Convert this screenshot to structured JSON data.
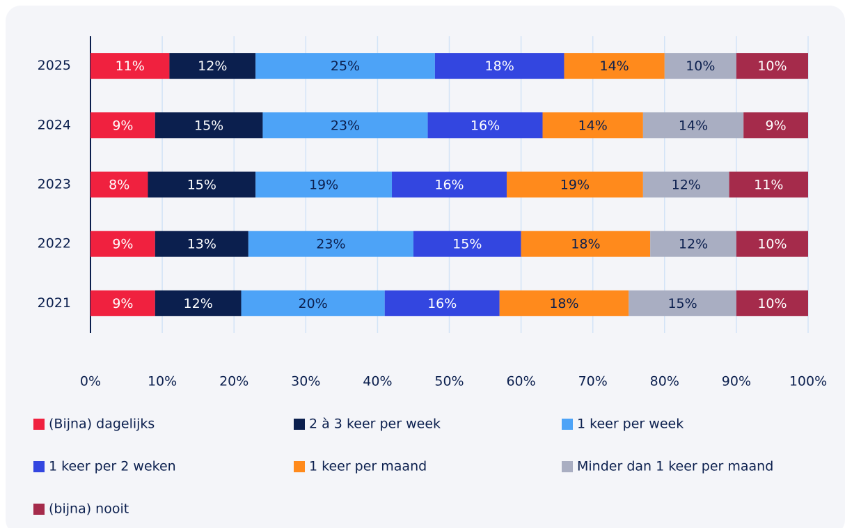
{
  "chart_data": {
    "type": "stacked_barh",
    "categories": [
      "2025",
      "2024",
      "2023",
      "2022",
      "2021"
    ],
    "series": [
      {
        "name": "(Bijna) dagelijks",
        "color": "#f0213f",
        "values": [
          11,
          9,
          8,
          9,
          9
        ],
        "value_labels": [
          "11%",
          "9%",
          "8%",
          "9%",
          "9%"
        ]
      },
      {
        "name": "2 à 3 keer per week",
        "color": "#0b1f4e",
        "values": [
          12,
          15,
          15,
          13,
          12
        ],
        "value_labels": [
          "12%",
          "15%",
          "15%",
          "13%",
          "12%"
        ]
      },
      {
        "name": "1 keer per week",
        "color": "#4da3f7",
        "values": [
          25,
          23,
          19,
          23,
          20
        ],
        "value_labels": [
          "25%",
          "23%",
          "19%",
          "23%",
          "20%"
        ]
      },
      {
        "name": "1 keer per 2 weken",
        "color": "#3346e0",
        "values": [
          18,
          16,
          16,
          15,
          16
        ],
        "value_labels": [
          "18%",
          "16%",
          "16%",
          "15%",
          "16%"
        ]
      },
      {
        "name": "1 keer per maand",
        "color": "#ff8a1c",
        "values": [
          14,
          14,
          19,
          18,
          18
        ],
        "value_labels": [
          "14%",
          "14%",
          "19%",
          "18%",
          "18%"
        ]
      },
      {
        "name": "Minder dan 1 keer per maand",
        "color": "#a9aec2",
        "values": [
          10,
          14,
          12,
          12,
          15
        ],
        "value_labels": [
          "10%",
          "14%",
          "12%",
          "12%",
          "15%"
        ]
      },
      {
        "name": "(bijna) nooit",
        "color": "#a52b4b",
        "values": [
          10,
          9,
          11,
          10,
          10
        ],
        "value_labels": [
          "10%",
          "9%",
          "11%",
          "10%",
          "10%"
        ]
      }
    ],
    "xlim": [
      0,
      100
    ],
    "xticks": [
      {
        "value": 0,
        "label": "0%"
      },
      {
        "value": 10,
        "label": "10%"
      },
      {
        "value": 20,
        "label": "20%"
      },
      {
        "value": 30,
        "label": "30%"
      },
      {
        "value": 40,
        "label": "40%"
      },
      {
        "value": 50,
        "label": "50%"
      },
      {
        "value": 60,
        "label": "60%"
      },
      {
        "value": 70,
        "label": "70%"
      },
      {
        "value": 80,
        "label": "80%"
      },
      {
        "value": 90,
        "label": "90%"
      },
      {
        "value": 100,
        "label": "100%"
      }
    ],
    "grid": true,
    "legend": "bottom"
  }
}
